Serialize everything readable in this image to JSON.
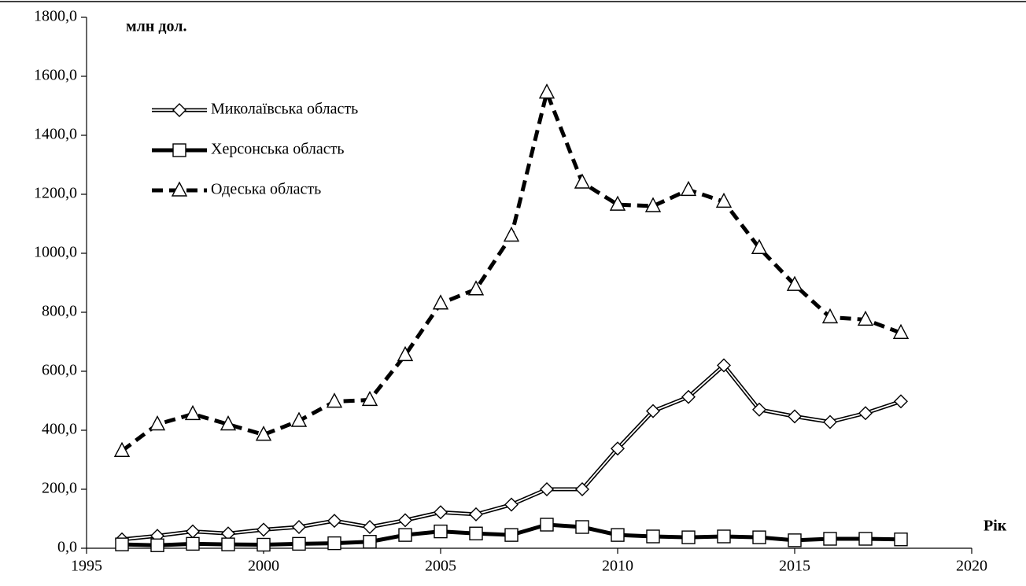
{
  "chart_data": {
    "type": "line",
    "y_label": "млн дол.",
    "x_label": "Рік",
    "x": [
      1996,
      1997,
      1998,
      1999,
      2000,
      2001,
      2002,
      2003,
      2004,
      2005,
      2006,
      2007,
      2008,
      2009,
      2010,
      2011,
      2012,
      2013,
      2014,
      2015,
      2016,
      2017,
      2018
    ],
    "series": [
      {
        "name": "Миколаївська область",
        "color": "#000000",
        "line_style": "double",
        "marker": "diamond",
        "values": [
          30,
          42,
          57,
          50,
          63,
          72,
          93,
          72,
          95,
          122,
          115,
          148,
          200,
          200,
          338,
          465,
          513,
          620,
          470,
          447,
          428,
          458,
          498
        ]
      },
      {
        "name": "Херсонська область",
        "color": "#000000",
        "line_style": "solid",
        "marker": "square",
        "values": [
          13,
          10,
          15,
          13,
          12,
          15,
          17,
          22,
          45,
          57,
          50,
          45,
          80,
          72,
          45,
          40,
          37,
          40,
          37,
          27,
          32,
          32,
          30
        ]
      },
      {
        "name": "Одеська область",
        "color": "#000000",
        "line_style": "dashed",
        "marker": "triangle",
        "values": [
          330,
          420,
          455,
          420,
          385,
          432,
          497,
          503,
          655,
          830,
          878,
          1060,
          1545,
          1240,
          1165,
          1160,
          1215,
          1175,
          1018,
          893,
          783,
          775,
          730
        ]
      }
    ],
    "xlim": [
      1995,
      2020
    ],
    "xticks": [
      1995,
      2000,
      2005,
      2010,
      2015,
      2020
    ],
    "ylim": [
      0,
      1800
    ],
    "yticks": [
      {
        "value": 0,
        "label": "0,0"
      },
      {
        "value": 200,
        "label": "200,0"
      },
      {
        "value": 400,
        "label": "400,0"
      },
      {
        "value": 600,
        "label": "600,0"
      },
      {
        "value": 800,
        "label": "800,0"
      },
      {
        "value": 1000,
        "label": "1000,0"
      },
      {
        "value": 1200,
        "label": "1200,0"
      },
      {
        "value": 1400,
        "label": "1400,0"
      },
      {
        "value": 1600,
        "label": "1600,0"
      },
      {
        "value": 1800,
        "label": "1800,0"
      }
    ],
    "grid": false,
    "legend": "upper left"
  }
}
